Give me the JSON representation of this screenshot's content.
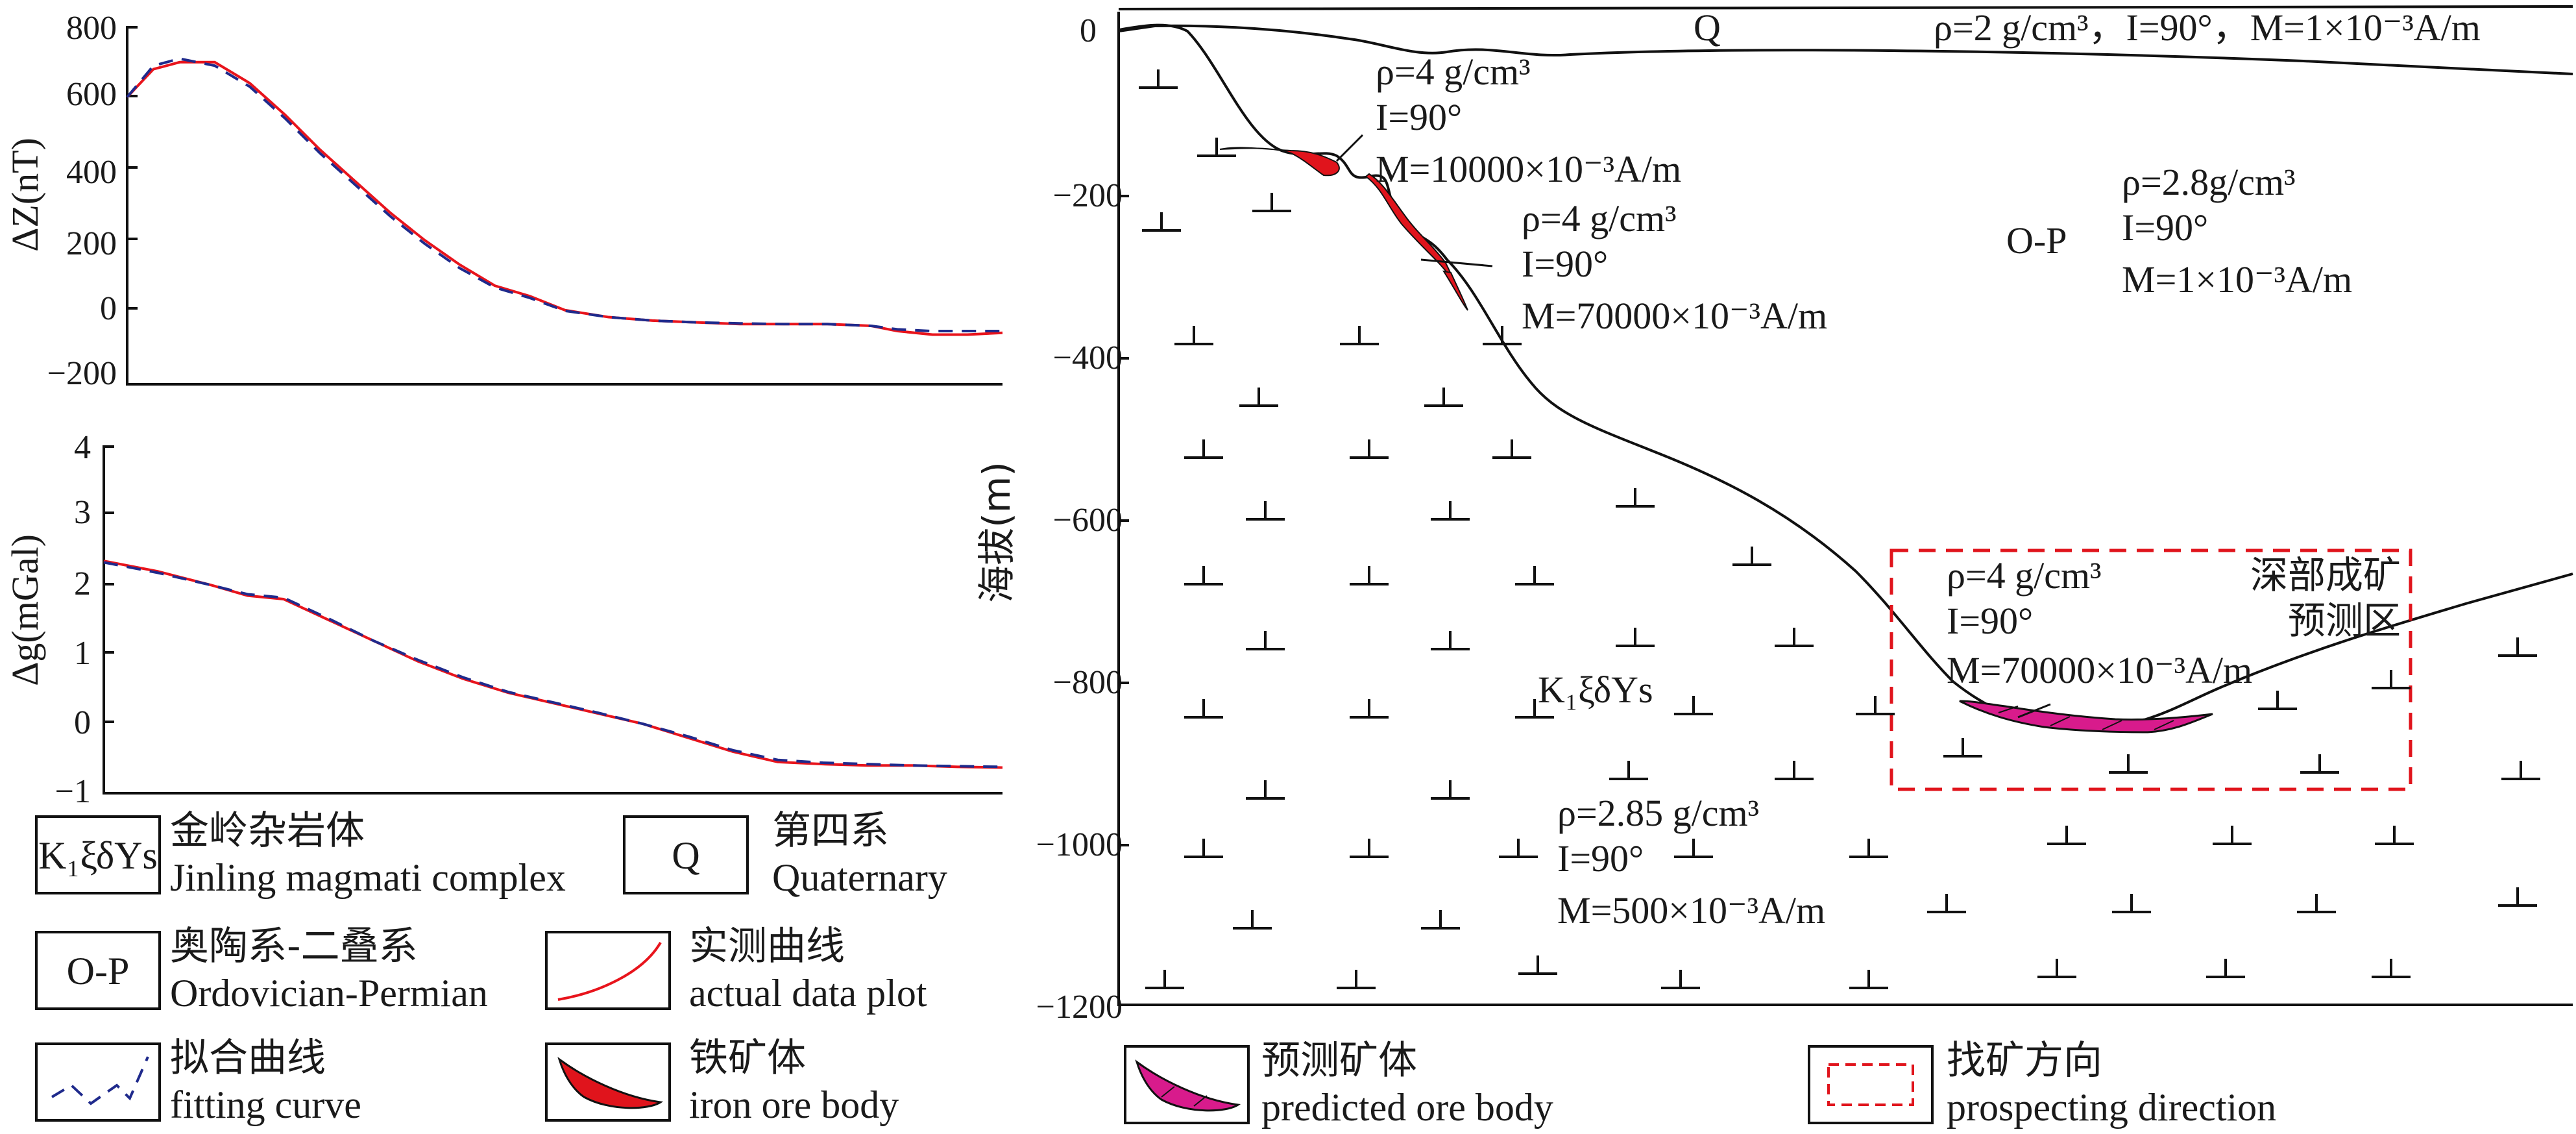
{
  "colors": {
    "measured": "#e8141c",
    "fitting": "#1f2a8c",
    "iron_ore": "#e0141c",
    "predicted_ore": "#d81b8c",
    "prospecting": "#e0141c"
  },
  "magnetic_panel": {
    "ylabel": "ΔZ(nT)",
    "yticks": [
      "800",
      "600",
      "400",
      "200",
      "0",
      "−200"
    ]
  },
  "gravity_panel": {
    "ylabel": "Δg(mGal)",
    "yticks": [
      "4",
      "3",
      "2",
      "1",
      "0",
      "−1"
    ]
  },
  "chart_data": [
    {
      "type": "line",
      "ylabel": "ΔZ(nT)",
      "ylim": [
        -200,
        800
      ],
      "x": [
        0,
        3,
        6,
        10,
        14,
        18,
        22,
        26,
        30,
        34,
        38,
        42,
        46,
        50,
        55,
        60,
        65,
        70,
        75,
        80,
        85,
        88,
        92,
        96,
        100
      ],
      "series": [
        {
          "name": "实测曲线 actual data plot",
          "values": [
            600,
            680,
            700,
            700,
            640,
            550,
            450,
            360,
            270,
            190,
            120,
            60,
            30,
            -10,
            -30,
            -40,
            -45,
            -50,
            -50,
            -50,
            -55,
            -70,
            -80,
            -80,
            -75
          ]
        },
        {
          "name": "拟合曲线 fitting curve",
          "values": [
            600,
            690,
            710,
            690,
            630,
            540,
            440,
            350,
            260,
            180,
            110,
            55,
            25,
            -12,
            -30,
            -40,
            -45,
            -48,
            -50,
            -50,
            -55,
            -65,
            -70,
            -70,
            -70
          ]
        }
      ]
    },
    {
      "type": "line",
      "ylabel": "Δg(mGal)",
      "ylim": [
        -1,
        4
      ],
      "x": [
        0,
        6,
        12,
        16,
        20,
        25,
        30,
        35,
        40,
        45,
        50,
        55,
        60,
        65,
        70,
        75,
        80,
        85,
        90,
        95,
        100
      ],
      "series": [
        {
          "name": "实测曲线 actual data plot",
          "values": [
            2.35,
            2.2,
            2.0,
            1.85,
            1.8,
            1.5,
            1.2,
            0.9,
            0.65,
            0.45,
            0.3,
            0.15,
            0.0,
            -0.2,
            -0.4,
            -0.55,
            -0.58,
            -0.6,
            -0.6,
            -0.62,
            -0.63
          ]
        },
        {
          "name": "拟合曲线 fitting curve",
          "values": [
            2.33,
            2.18,
            2.0,
            1.87,
            1.82,
            1.52,
            1.2,
            0.92,
            0.67,
            0.46,
            0.31,
            0.16,
            0.0,
            -0.18,
            -0.38,
            -0.52,
            -0.56,
            -0.58,
            -0.6,
            -0.61,
            -0.62
          ]
        }
      ]
    }
  ],
  "section": {
    "ylabel": "海拔(m)",
    "yticks": [
      "0",
      "−200",
      "−400",
      "−600",
      "−800",
      "−1000",
      "−1200"
    ],
    "q_label": "Q",
    "q_params": "ρ=2 g/cm³，I=90°，M=1×10⁻³A/m",
    "op_label": "O-P",
    "op_params": [
      "ρ=2.8g/cm³",
      "I=90°",
      "M=1×10⁻³A/m"
    ],
    "k_label": "K₁ξδYs",
    "k_params": [
      "ρ=2.85 g/cm³",
      "I=90°",
      "M=500×10⁻³A/m"
    ],
    "ore1_params": [
      "ρ=4 g/cm³",
      "I=90°",
      "M=10000×10⁻³A/m"
    ],
    "ore2_params": [
      "ρ=4 g/cm³",
      "I=90°",
      "M=70000×10⁻³A/m"
    ],
    "ore3_params": [
      "ρ=4 g/cm³",
      "I=90°",
      "M=70000×10⁻³A/m"
    ],
    "target_zone": [
      "深部成矿",
      "预测区"
    ]
  },
  "legend": [
    {
      "symbol": "K₁ξδYs",
      "cn": "金岭杂岩体",
      "en": "Jinling magmati complex"
    },
    {
      "symbol": "Q",
      "cn": "第四系",
      "en": "Quaternary"
    },
    {
      "symbol": "O-P",
      "cn": "奥陶系-二叠系",
      "en": "Ordovician-Permian"
    },
    {
      "symbol": "measured-curve-icon",
      "cn": "实测曲线",
      "en": "actual data plot"
    },
    {
      "symbol": "fitting-curve-icon",
      "cn": "拟合曲线",
      "en": "fitting curve"
    },
    {
      "symbol": "iron-ore-icon",
      "cn": "铁矿体",
      "en": "iron ore body"
    },
    {
      "symbol": "predicted-ore-icon",
      "cn": "预测矿体",
      "en": "predicted ore body"
    },
    {
      "symbol": "prospecting-icon",
      "cn": "找矿方向",
      "en": "prospecting direction"
    }
  ]
}
